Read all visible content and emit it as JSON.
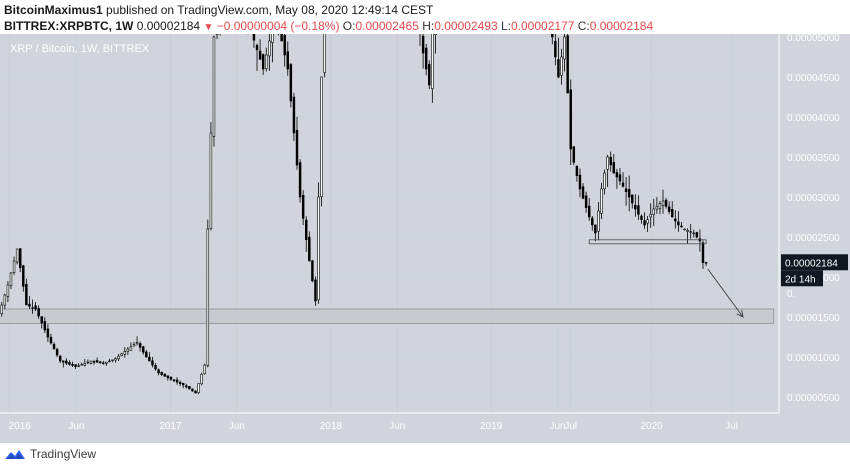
{
  "header": {
    "author": "BitcoinMaximus1",
    "published_text": "published on TradingView.com, May 08, 2020 12:49:14 CEST",
    "symbol": "BITTREX:XRPBTC, 1W",
    "last": "0.00002184",
    "change": "−0.00000004 (−0.18%)",
    "open_label": "O:",
    "open": "0.00002465",
    "high_label": "H:",
    "high": "0.00002493",
    "low_label": "L:",
    "low": "0.00002177",
    "close_label": "C:",
    "close": "0.00002184"
  },
  "footer": {
    "brand": "TradingView"
  },
  "colors": {
    "plot_bg": "#d1d4dc",
    "candle": "#000000",
    "axis_text": "#ffffff",
    "price_tag_bg": "#131722",
    "zone_fill": "#c8cad0",
    "zone_stroke": "#8d9097",
    "support_line": "#4a4a4a"
  },
  "chart_data": {
    "type": "candlestick",
    "title": "XRP / Bitcoin, 1W, BITTREX",
    "x_tick_labels": [
      "2016",
      "Jun",
      "2017",
      "Jun",
      "2018",
      "Jun",
      "2019",
      "Jun",
      "Jul",
      "2020",
      "Jul"
    ],
    "x_tick_dates": [
      "2016-01-01",
      "2016-06-01",
      "2017-01-01",
      "2017-06-01",
      "2018-01-01",
      "2018-06-01",
      "2019-01-01",
      "2019-06-01",
      "2019-07-01",
      "2020-01-01",
      "2020-07-01"
    ],
    "y_tick_labels": [
      "0.00000500",
      "0.00001000",
      "0.00001500",
      "0.00002000",
      "0.00002500",
      "0.00003000",
      "0.00003500",
      "0.00004000",
      "0.00004500",
      "0.00005000"
    ],
    "y_tick_values": [
      5e-06,
      1e-05,
      1.5e-05,
      2e-05,
      2.5e-05,
      3e-05,
      3.5e-05,
      4e-05,
      4.5e-05,
      5e-05
    ],
    "ylim": [
      3e-06,
      5e-05
    ],
    "last_price_tag": "0.00002184",
    "countdown_tag": "2d 14h",
    "hidden_tick_fragment": "0.",
    "support_zone": {
      "low": 1.42e-05,
      "high": 1.6e-05,
      "from": "2015-12-07",
      "to": "2020-10-05"
    },
    "support_line": {
      "price": 2.44e-05,
      "from": "2019-08-12",
      "to": "2020-05-04"
    },
    "projection_arrow": {
      "from_date": "2020-05-08",
      "from_price": 2.1e-05,
      "to_date": "2020-07-27",
      "to_price": 1.5e-05
    },
    "anchors": [
      {
        "date": "2015-12-07",
        "price": 1.4e-05
      },
      {
        "date": "2016-01-04",
        "price": 1.9e-05
      },
      {
        "date": "2016-01-25",
        "price": 2.35e-05
      },
      {
        "date": "2016-02-15",
        "price": 1.65e-05
      },
      {
        "date": "2016-03-07",
        "price": 1.6e-05
      },
      {
        "date": "2016-04-04",
        "price": 1.25e-05
      },
      {
        "date": "2016-05-02",
        "price": 9.5e-06
      },
      {
        "date": "2016-06-06",
        "price": 8.8e-06
      },
      {
        "date": "2016-07-11",
        "price": 9.5e-06
      },
      {
        "date": "2016-08-08",
        "price": 9.2e-06
      },
      {
        "date": "2016-09-05",
        "price": 9.8e-06
      },
      {
        "date": "2016-10-03",
        "price": 1.1e-05
      },
      {
        "date": "2016-10-24",
        "price": 1.18e-05
      },
      {
        "date": "2016-11-14",
        "price": 1e-05
      },
      {
        "date": "2016-12-12",
        "price": 8e-06
      },
      {
        "date": "2017-01-09",
        "price": 7.2e-06
      },
      {
        "date": "2017-02-06",
        "price": 6.5e-06
      },
      {
        "date": "2017-03-06",
        "price": 5.5e-06
      },
      {
        "date": "2017-03-27",
        "price": 9e-06
      },
      {
        "date": "2017-04-03",
        "price": 2.6e-05
      },
      {
        "date": "2017-04-17",
        "price": 5e-05
      },
      {
        "date": "2017-05-01",
        "price": 5.6e-05
      },
      {
        "date": "2017-05-29",
        "price": 6e-05
      },
      {
        "date": "2017-07-03",
        "price": 5.2e-05
      },
      {
        "date": "2017-08-07",
        "price": 4.6e-05
      },
      {
        "date": "2017-09-04",
        "price": 5.3e-05
      },
      {
        "date": "2017-10-02",
        "price": 4.6e-05
      },
      {
        "date": "2017-10-30",
        "price": 3e-05
      },
      {
        "date": "2017-11-20",
        "price": 2.2e-05
      },
      {
        "date": "2017-12-04",
        "price": 1.7e-05
      },
      {
        "date": "2017-12-11",
        "price": 3e-05
      },
      {
        "date": "2017-12-25",
        "price": 6e-05
      },
      {
        "date": "2018-01-15",
        "price": 0.0001
      },
      {
        "date": "2018-06-04",
        "price": 7e-05
      },
      {
        "date": "2018-08-06",
        "price": 4.8e-05
      },
      {
        "date": "2018-08-20",
        "price": 4.4e-05
      },
      {
        "date": "2018-09-17",
        "price": 7e-05
      },
      {
        "date": "2018-11-19",
        "price": 9e-05
      },
      {
        "date": "2019-03-04",
        "price": 8e-05
      },
      {
        "date": "2019-05-27",
        "price": 5e-05
      },
      {
        "date": "2019-06-10",
        "price": 4.5e-05
      },
      {
        "date": "2019-06-24",
        "price": 5e-05
      },
      {
        "date": "2019-07-08",
        "price": 3.6e-05
      },
      {
        "date": "2019-07-29",
        "price": 3.1e-05
      },
      {
        "date": "2019-08-19",
        "price": 2.75e-05
      },
      {
        "date": "2019-09-02",
        "price": 2.55e-05
      },
      {
        "date": "2019-09-16",
        "price": 3.1e-05
      },
      {
        "date": "2019-09-30",
        "price": 3.5e-05
      },
      {
        "date": "2019-10-14",
        "price": 3.3e-05
      },
      {
        "date": "2019-10-28",
        "price": 3.2e-05
      },
      {
        "date": "2019-11-18",
        "price": 3e-05
      },
      {
        "date": "2019-12-02",
        "price": 2.85e-05
      },
      {
        "date": "2019-12-23",
        "price": 2.65e-05
      },
      {
        "date": "2020-01-13",
        "price": 2.85e-05
      },
      {
        "date": "2020-02-03",
        "price": 2.95e-05
      },
      {
        "date": "2020-02-24",
        "price": 2.75e-05
      },
      {
        "date": "2020-03-09",
        "price": 2.65e-05
      },
      {
        "date": "2020-03-23",
        "price": 2.6e-05
      },
      {
        "date": "2020-04-13",
        "price": 2.55e-05
      },
      {
        "date": "2020-04-27",
        "price": 2.45e-05
      },
      {
        "date": "2020-05-04",
        "price": 2.18e-05
      }
    ]
  }
}
